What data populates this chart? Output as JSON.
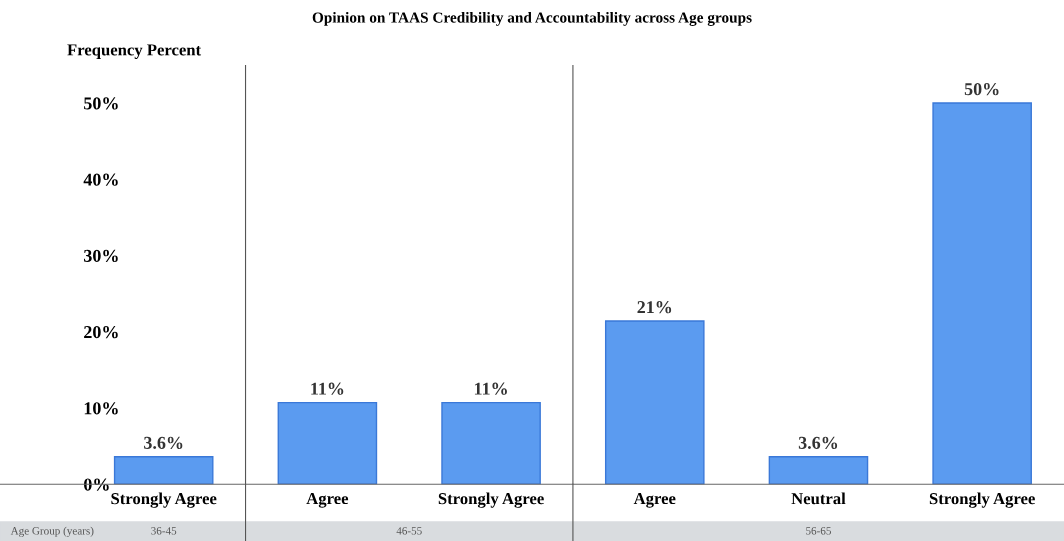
{
  "chart_data": {
    "type": "bar",
    "title": "Opinion on TAAS Credibility and Accountability across Age groups",
    "ylabel": "Frequency Percent",
    "categories": [
      "Strongly Agree",
      "Agree",
      "Strongly Agree",
      "Agree",
      "Neutral",
      "Strongly Agree"
    ],
    "values": [
      3.6,
      10.7,
      10.7,
      21.4,
      3.6,
      50
    ],
    "value_labels": [
      "3.6%",
      "11%",
      "11%",
      "21%",
      "3.6%",
      "50%"
    ],
    "color": "#5b9bf0",
    "ylim": [
      0,
      55
    ],
    "yticks": [
      {
        "value": 0,
        "label": "0%"
      },
      {
        "value": 10,
        "label": "10%"
      },
      {
        "value": 20,
        "label": "20%"
      },
      {
        "value": 30,
        "label": "30%"
      },
      {
        "value": 40,
        "label": "40%"
      },
      {
        "value": 50,
        "label": "50%"
      }
    ],
    "grid": false,
    "annotations": [
      "Age Group (years)",
      "36-45",
      "46-55",
      "56-65"
    ]
  }
}
